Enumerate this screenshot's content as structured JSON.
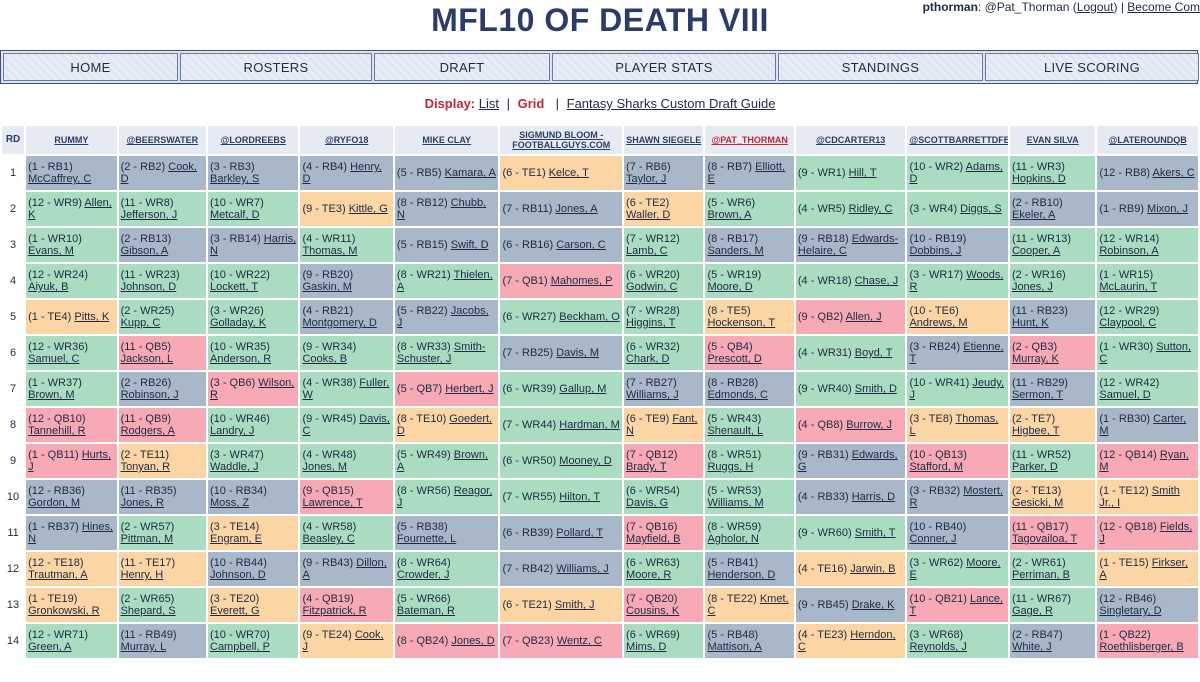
{
  "header": {
    "title": "MFL10 OF DEATH VIII",
    "username": "pthorman",
    "handle": ": @Pat_Thorman",
    "logout_label": "Logout",
    "become_label": "Become Com"
  },
  "nav": [
    "HOME",
    "ROSTERS",
    "DRAFT",
    "PLAYER STATS",
    "STANDINGS",
    "LIVE SCORING"
  ],
  "display": {
    "label": "Display:",
    "list_label": "List",
    "grid_label": "Grid",
    "guide_label": "Fantasy Sharks Custom Draft Guide"
  },
  "grid": {
    "rd_header": "RD",
    "teams": [
      "RUMMY",
      "@BEERSWATER",
      "@LORDREEBS",
      "@RYFO18",
      "MIKE CLAY",
      "SIGMUND BLOOM - FOOTBALLGUYS.COM",
      "SHAWN SIEGELE",
      "@PAT_THORMAN",
      "@CDCARTER13",
      "@SCOTTBARRETTDFB",
      "EVAN SILVA",
      "@LATEROUNDQB"
    ],
    "rows": [
      {
        "rd": "1",
        "picks": [
          [
            "(1 - RB1) ",
            "McCaffrey, C",
            "RB"
          ],
          [
            "(2 - RB2) ",
            "Cook, D",
            "RB"
          ],
          [
            "(3 - RB3) ",
            "Barkley, S",
            "RB"
          ],
          [
            "(4 - RB4) ",
            "Henry, D",
            "RB"
          ],
          [
            "(5 - RB5) ",
            "Kamara, A",
            "RB"
          ],
          [
            "(6 - TE1) ",
            "Kelce, T",
            "TE"
          ],
          [
            "(7 - RB6) ",
            "Taylor, J",
            "RB"
          ],
          [
            "(8 - RB7) ",
            "Elliott, E",
            "RB"
          ],
          [
            "(9 - WR1) ",
            "Hill, T",
            "WR"
          ],
          [
            "(10 - WR2) ",
            "Adams, D",
            "WR"
          ],
          [
            "(11 - WR3) ",
            "Hopkins, D",
            "WR"
          ],
          [
            "(12 - RB8) ",
            "Akers, C",
            "RB"
          ]
        ]
      },
      {
        "rd": "2",
        "picks": [
          [
            "(12 - WR9) ",
            "Allen, K",
            "WR"
          ],
          [
            "(11 - WR8) ",
            "Jefferson, J",
            "WR"
          ],
          [
            "(10 - WR7) ",
            "Metcalf, D",
            "WR"
          ],
          [
            "(9 - TE3) ",
            "Kittle, G",
            "TE"
          ],
          [
            "(8 - RB12) ",
            "Chubb, N",
            "RB"
          ],
          [
            "(7 - RB11) ",
            "Jones, A",
            "RB"
          ],
          [
            "(6 - TE2) ",
            "Waller, D",
            "TE"
          ],
          [
            "(5 - WR6) ",
            "Brown, A",
            "WR"
          ],
          [
            "(4 - WR5) ",
            "Ridley, C",
            "WR"
          ],
          [
            "(3 - WR4) ",
            "Diggs, S",
            "WR"
          ],
          [
            "(2 - RB10) ",
            "Ekeler, A",
            "RB"
          ],
          [
            "(1 - RB9) ",
            "Mixon, J",
            "RB"
          ]
        ]
      },
      {
        "rd": "3",
        "picks": [
          [
            "(1 - WR10) ",
            "Evans, M",
            "WR"
          ],
          [
            "(2 - RB13) ",
            "Gibson, A",
            "RB"
          ],
          [
            "(3 - RB14) ",
            "Harris, N",
            "RB"
          ],
          [
            "(4 - WR11) ",
            "Thomas, M",
            "WR"
          ],
          [
            "(5 - RB15) ",
            "Swift, D",
            "RB"
          ],
          [
            "(6 - RB16) ",
            "Carson, C",
            "RB"
          ],
          [
            "(7 - WR12) ",
            "Lamb, C",
            "WR"
          ],
          [
            "(8 - RB17) ",
            "Sanders, M",
            "RB"
          ],
          [
            "(9 - RB18) ",
            "Edwards-Helaire, C",
            "RB"
          ],
          [
            "(10 - RB19) ",
            "Dobbins, J",
            "RB"
          ],
          [
            "(11 - WR13) ",
            "Cooper, A",
            "WR"
          ],
          [
            "(12 - WR14) ",
            "Robinson, A",
            "WR"
          ]
        ]
      },
      {
        "rd": "4",
        "picks": [
          [
            "(12 - WR24) ",
            "Aiyuk, B",
            "WR"
          ],
          [
            "(11 - WR23) ",
            "Johnson, D",
            "WR"
          ],
          [
            "(10 - WR22) ",
            "Lockett, T",
            "WR"
          ],
          [
            "(9 - RB20) ",
            "Gaskin, M",
            "RB"
          ],
          [
            "(8 - WR21) ",
            "Thielen, A",
            "WR"
          ],
          [
            "(7 - QB1) ",
            "Mahomes, P",
            "QB"
          ],
          [
            "(6 - WR20) ",
            "Godwin, C",
            "WR"
          ],
          [
            "(5 - WR19) ",
            "Moore, D",
            "WR"
          ],
          [
            "(4 - WR18) ",
            "Chase, J",
            "WR"
          ],
          [
            "(3 - WR17) ",
            "Woods, R",
            "WR"
          ],
          [
            "(2 - WR16) ",
            "Jones, J",
            "WR"
          ],
          [
            "(1 - WR15) ",
            "McLaurin, T",
            "WR"
          ]
        ]
      },
      {
        "rd": "5",
        "picks": [
          [
            "(1 - TE4) ",
            "Pitts, K",
            "TE"
          ],
          [
            "(2 - WR25) ",
            "Kupp, C",
            "WR"
          ],
          [
            "(3 - WR26) ",
            "Golladay, K",
            "WR"
          ],
          [
            "(4 - RB21) ",
            "Montgomery, D",
            "RB"
          ],
          [
            "(5 - RB22) ",
            "Jacobs, J",
            "RB"
          ],
          [
            "(6 - WR27) ",
            "Beckham, O",
            "WR"
          ],
          [
            "(7 - WR28) ",
            "Higgins, T",
            "WR"
          ],
          [
            "(8 - TE5) ",
            "Hockenson, T",
            "TE"
          ],
          [
            "(9 - QB2) ",
            "Allen, J",
            "QB"
          ],
          [
            "(10 - TE6) ",
            "Andrews, M",
            "TE"
          ],
          [
            "(11 - RB23) ",
            "Hunt, K",
            "RB"
          ],
          [
            "(12 - WR29) ",
            "Claypool, C",
            "WR"
          ]
        ]
      },
      {
        "rd": "6",
        "picks": [
          [
            "(12 - WR36) ",
            "Samuel, C",
            "WR"
          ],
          [
            "(11 - QB5) ",
            "Jackson, L",
            "QB"
          ],
          [
            "(10 - WR35) ",
            "Anderson, R",
            "WR"
          ],
          [
            "(9 - WR34) ",
            "Cooks, B",
            "WR"
          ],
          [
            "(8 - WR33) ",
            "Smith-Schuster, J",
            "WR"
          ],
          [
            "(7 - RB25) ",
            "Davis, M",
            "RB"
          ],
          [
            "(6 - WR32) ",
            "Chark, D",
            "WR"
          ],
          [
            "(5 - QB4) ",
            "Prescott, D",
            "QB"
          ],
          [
            "(4 - WR31) ",
            "Boyd, T",
            "WR"
          ],
          [
            "(3 - RB24) ",
            "Etienne, T",
            "RB"
          ],
          [
            "(2 - QB3) ",
            "Murray, K",
            "QB"
          ],
          [
            "(1 - WR30) ",
            "Sutton, C",
            "WR"
          ]
        ]
      },
      {
        "rd": "7",
        "picks": [
          [
            "(1 - WR37) ",
            "Brown, M",
            "WR"
          ],
          [
            "(2 - RB26) ",
            "Robinson, J",
            "RB"
          ],
          [
            "(3 - QB6) ",
            "Wilson, R",
            "QB"
          ],
          [
            "(4 - WR38) ",
            "Fuller, W",
            "WR"
          ],
          [
            "(5 - QB7) ",
            "Herbert, J",
            "QB"
          ],
          [
            "(6 - WR39) ",
            "Gallup, M",
            "WR"
          ],
          [
            "(7 - RB27) ",
            "Williams, J",
            "RB"
          ],
          [
            "(8 - RB28) ",
            "Edmonds, C",
            "RB"
          ],
          [
            "(9 - WR40) ",
            "Smith, D",
            "WR"
          ],
          [
            "(10 - WR41) ",
            "Jeudy, J",
            "WR"
          ],
          [
            "(11 - RB29) ",
            "Sermon, T",
            "RB"
          ],
          [
            "(12 - WR42) ",
            "Samuel, D",
            "WR"
          ]
        ]
      },
      {
        "rd": "8",
        "picks": [
          [
            "(12 - QB10) ",
            "Tannehill, R",
            "QB"
          ],
          [
            "(11 - QB9) ",
            "Rodgers, A",
            "QB"
          ],
          [
            "(10 - WR46) ",
            "Landry, J",
            "WR"
          ],
          [
            "(9 - WR45) ",
            "Davis, C",
            "WR"
          ],
          [
            "(8 - TE10) ",
            "Goedert, D",
            "TE"
          ],
          [
            "(7 - WR44) ",
            "Hardman, M",
            "WR"
          ],
          [
            "(6 - TE9) ",
            "Fant, N",
            "TE"
          ],
          [
            "(5 - WR43) ",
            "Shenault, L",
            "WR"
          ],
          [
            "(4 - QB8) ",
            "Burrow, J",
            "QB"
          ],
          [
            "(3 - TE8) ",
            "Thomas, L",
            "TE"
          ],
          [
            "(2 - TE7) ",
            "Higbee, T",
            "TE"
          ],
          [
            "(1 - RB30) ",
            "Carter, M",
            "RB"
          ]
        ]
      },
      {
        "rd": "9",
        "picks": [
          [
            "(1 - QB11) ",
            "Hurts, J",
            "QB"
          ],
          [
            "(2 - TE11) ",
            "Tonyan, R",
            "TE"
          ],
          [
            "(3 - WR47) ",
            "Waddle, J",
            "WR"
          ],
          [
            "(4 - WR48) ",
            "Jones, M",
            "WR"
          ],
          [
            "(5 - WR49) ",
            "Brown, A",
            "WR"
          ],
          [
            "(6 - WR50) ",
            "Mooney, D",
            "WR"
          ],
          [
            "(7 - QB12) ",
            "Brady, T",
            "QB"
          ],
          [
            "(8 - WR51) ",
            "Ruggs, H",
            "WR"
          ],
          [
            "(9 - RB31) ",
            "Edwards, G",
            "RB"
          ],
          [
            "(10 - QB13) ",
            "Stafford, M",
            "QB"
          ],
          [
            "(11 - WR52) ",
            "Parker, D",
            "WR"
          ],
          [
            "(12 - QB14) ",
            "Ryan, M",
            "QB"
          ]
        ]
      },
      {
        "rd": "10",
        "picks": [
          [
            "(12 - RB36) ",
            "Gordon, M",
            "RB"
          ],
          [
            "(11 - RB35) ",
            "Jones, R",
            "RB"
          ],
          [
            "(10 - RB34) ",
            "Moss, Z",
            "RB"
          ],
          [
            "(9 - QB15) ",
            "Lawrence, T",
            "QB"
          ],
          [
            "(8 - WR56) ",
            "Reagor, J",
            "WR"
          ],
          [
            "(7 - WR55) ",
            "Hilton, T",
            "WR"
          ],
          [
            "(6 - WR54) ",
            "Davis, G",
            "WR"
          ],
          [
            "(5 - WR53) ",
            "Williams, M",
            "WR"
          ],
          [
            "(4 - RB33) ",
            "Harris, D",
            "RB"
          ],
          [
            "(3 - RB32) ",
            "Mostert, R",
            "RB"
          ],
          [
            "(2 - TE13) ",
            "Gesicki, M",
            "TE"
          ],
          [
            "(1 - TE12) ",
            "Smith Jr., I",
            "TE"
          ]
        ]
      },
      {
        "rd": "11",
        "picks": [
          [
            "(1 - RB37) ",
            "Hines, N",
            "RB"
          ],
          [
            "(2 - WR57) ",
            "Pittman, M",
            "WR"
          ],
          [
            "(3 - TE14) ",
            "Engram, E",
            "TE"
          ],
          [
            "(4 - WR58) ",
            "Beasley, C",
            "WR"
          ],
          [
            "(5 - RB38) ",
            "Fournette, L",
            "RB"
          ],
          [
            "(6 - RB39) ",
            "Pollard, T",
            "RB"
          ],
          [
            "(7 - QB16) ",
            "Mayfield, B",
            "QB"
          ],
          [
            "(8 - WR59) ",
            "Agholor, N",
            "WR"
          ],
          [
            "(9 - WR60) ",
            "Smith, T",
            "WR"
          ],
          [
            "(10 - RB40) ",
            "Conner, J",
            "RB"
          ],
          [
            "(11 - QB17) ",
            "Tagovailoa, T",
            "QB"
          ],
          [
            "(12 - QB18) ",
            "Fields, J",
            "QB"
          ]
        ]
      },
      {
        "rd": "12",
        "picks": [
          [
            "(12 - TE18) ",
            "Trautman, A",
            "TE"
          ],
          [
            "(11 - TE17) ",
            "Henry, H",
            "TE"
          ],
          [
            "(10 - RB44) ",
            "Johnson, D",
            "RB"
          ],
          [
            "(9 - RB43) ",
            "Dillon, A",
            "RB"
          ],
          [
            "(8 - WR64) ",
            "Crowder, J",
            "WR"
          ],
          [
            "(7 - RB42) ",
            "Williams, J",
            "RB"
          ],
          [
            "(6 - WR63) ",
            "Moore, R",
            "WR"
          ],
          [
            "(5 - RB41) ",
            "Henderson, D",
            "RB"
          ],
          [
            "(4 - TE16) ",
            "Jarwin, B",
            "TE"
          ],
          [
            "(3 - WR62) ",
            "Moore, E",
            "WR"
          ],
          [
            "(2 - WR61) ",
            "Perriman, B",
            "WR"
          ],
          [
            "(1 - TE15) ",
            "Firkser, A",
            "TE"
          ]
        ]
      },
      {
        "rd": "13",
        "picks": [
          [
            "(1 - TE19) ",
            "Gronkowski, R",
            "TE"
          ],
          [
            "(2 - WR65) ",
            "Shepard, S",
            "WR"
          ],
          [
            "(3 - TE20) ",
            "Everett, G",
            "TE"
          ],
          [
            "(4 - QB19) ",
            "Fitzpatrick, R",
            "QB"
          ],
          [
            "(5 - WR66) ",
            "Bateman, R",
            "WR"
          ],
          [
            "(6 - TE21) ",
            "Smith, J",
            "TE"
          ],
          [
            "(7 - QB20) ",
            "Cousins, K",
            "QB"
          ],
          [
            "(8 - TE22) ",
            "Kmet, C",
            "TE"
          ],
          [
            "(9 - RB45) ",
            "Drake, K",
            "RB"
          ],
          [
            "(10 - QB21) ",
            "Lance, T",
            "QB"
          ],
          [
            "(11 - WR67) ",
            "Gage, R",
            "WR"
          ],
          [
            "(12 - RB46) ",
            "Singletary, D",
            "RB"
          ]
        ]
      },
      {
        "rd": "14",
        "picks": [
          [
            "(12 - WR71) ",
            "Green, A",
            "WR"
          ],
          [
            "(11 - RB49) ",
            "Murray, L",
            "RB"
          ],
          [
            "(10 - WR70) ",
            "Campbell, P",
            "WR"
          ],
          [
            "(9 - TE24) ",
            "Cook, J",
            "TE"
          ],
          [
            "(8 - QB24) ",
            "Jones, D",
            "QB"
          ],
          [
            "(7 - QB23) ",
            "Wentz, C",
            "QB"
          ],
          [
            "(6 - WR69) ",
            "Mims, D",
            "WR"
          ],
          [
            "(5 - RB48) ",
            "Mattison, A",
            "RB"
          ],
          [
            "(4 - TE23) ",
            "Herndon, C",
            "TE"
          ],
          [
            "(3 - WR68) ",
            "Reynolds, J",
            "WR"
          ],
          [
            "(2 - RB47) ",
            "White, J",
            "RB"
          ],
          [
            "(1 - QB22) ",
            "Roethlisberger, B",
            "QB"
          ]
        ]
      }
    ]
  }
}
